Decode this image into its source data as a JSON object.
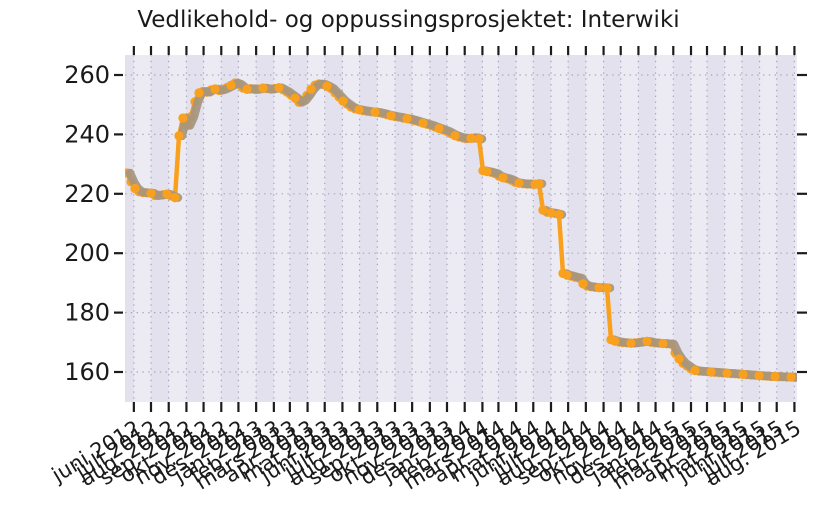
{
  "title": "Vedlikehold- og oppussingsprosjektet: Interwiki",
  "colors": {
    "background": "#FFFFFF",
    "data_line": "#F9A11E",
    "overlay_line": "#A59680",
    "band_light": "#ECEBF4",
    "band_dark": "#E3E1EE",
    "grid_dots": "#A8A6BC",
    "ticks": "#1C1C1C",
    "text": "#1A1A1A"
  },
  "chart_data": {
    "type": "line",
    "title": "Vedlikehold- og oppussingsprosjektet: Interwiki",
    "xlabel": "",
    "ylabel": "",
    "grid": "dotted",
    "legend": "none",
    "background_bands": "alternating monthly shading",
    "x_axis": {
      "start_date": "2012-05-20",
      "interval_days": 7,
      "tick_labels": [
        "juni 2012",
        "juli 2012",
        "aug. 2012",
        "sep. 2012",
        "okt. 2012",
        "nov. 2012",
        "des. 2012",
        "jan. 2013",
        "feb. 2013",
        "mars 2013",
        "apr. 2013",
        "mai 2013",
        "juni 2013",
        "juli 2013",
        "aug. 2013",
        "sep. 2013",
        "okt. 2013",
        "nov. 2013",
        "des. 2013",
        "jan. 2014",
        "feb. 2014",
        "mars 2014",
        "apr. 2014",
        "mai 2014",
        "juni 2014",
        "juli 2014",
        "aug. 2014",
        "sep. 2014",
        "okt. 2014",
        "nov. 2014",
        "des. 2014",
        "jan. 2015",
        "feb. 2015",
        "mars 2015",
        "apr. 2015",
        "mai 2015",
        "juni 2015",
        "juli 2015",
        "aug. 2015"
      ]
    },
    "y_axis": {
      "ticks": [
        260,
        240,
        220,
        200,
        180,
        160
      ],
      "range": [
        148,
        267
      ]
    },
    "series": [
      {
        "role": "weekly-count",
        "color": "#F9A11E",
        "marker": "circle",
        "values": [
          227,
          224,
          221.8,
          220.7,
          220.4,
          220.3,
          220.2,
          219.4,
          219.5,
          219.7,
          219.9,
          219.3,
          218.7,
          239.5,
          245.5,
          243,
          246,
          251,
          254,
          254.5,
          254.2,
          255,
          255.3,
          254.8,
          255.2,
          255.8,
          256.5,
          257.3,
          256.8,
          255.6,
          255.2,
          255.4,
          255.1,
          255.3,
          255.6,
          255.4,
          255.2,
          255.5,
          255.7,
          255,
          254.2,
          253.2,
          252.2,
          250.8,
          251.5,
          253.2,
          255.2,
          256.6,
          257,
          256.8,
          256.2,
          255.4,
          254,
          252.6,
          251.2,
          250.2,
          249.2,
          248.6,
          248.3,
          248,
          247.8,
          247.6,
          247.5,
          247.3,
          247,
          246.6,
          246.3,
          246,
          245.8,
          245.5,
          245.3,
          245,
          244.6,
          244.2,
          243.8,
          243.4,
          243,
          242.5,
          242,
          241.5,
          241,
          240.2,
          239.6,
          239.1,
          238.8,
          238.6,
          238.7,
          238.9,
          238.5,
          227.8,
          227.5,
          227.2,
          226.8,
          225.9,
          225.4,
          225.1,
          224.6,
          223.9,
          223.6,
          223.4,
          223.3,
          223.3,
          223.2,
          223.4,
          214.5,
          213.8,
          213.6,
          213.4,
          213,
          193.2,
          192.6,
          192.3,
          191.9,
          191.6,
          189.7,
          188.9,
          188.7,
          188.5,
          188.4,
          188.4,
          188.3,
          170.9,
          170.4,
          170.1,
          169.9,
          169.8,
          169.7,
          169.8,
          170,
          170.2,
          170.3,
          170,
          169.8,
          169.7,
          169.6,
          169.5,
          169.4,
          166.5,
          164.4,
          162.9,
          162,
          161,
          160.5,
          160.3,
          160.2,
          160.1,
          160,
          159.9,
          159.8,
          159.7,
          159.6,
          159.5,
          159.4,
          159.3,
          159.2,
          159.1,
          159,
          158.9,
          158.8,
          158.7,
          158.6,
          158.5,
          158.5,
          158.4,
          158.4,
          158.3,
          158.3,
          158.2,
          158.2
        ]
      },
      {
        "role": "overlay-trend",
        "color": "#A59680",
        "marker": "none",
        "note": "thick rounded overlay tracking the same values, drawn on top, breaks at the abrupt jumps"
      }
    ]
  }
}
